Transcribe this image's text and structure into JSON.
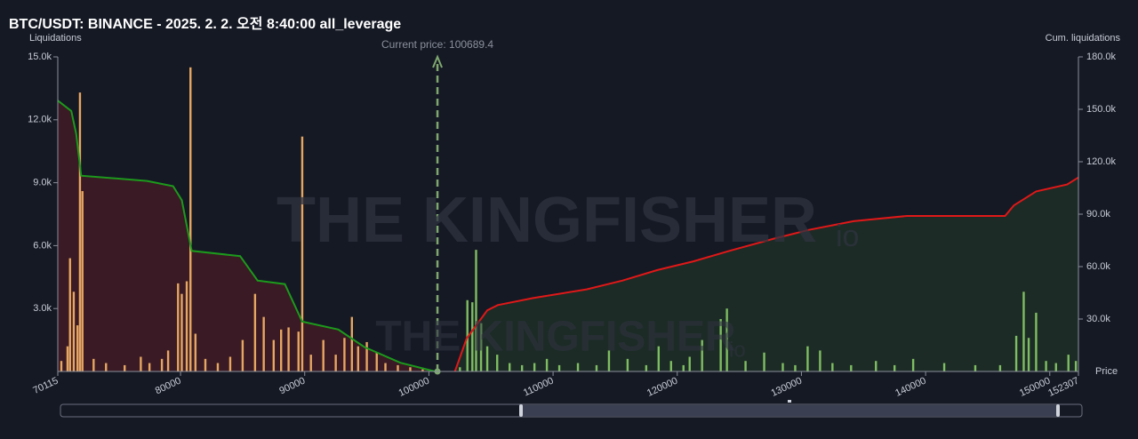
{
  "chart_data": {
    "type": "bar",
    "title": "BTC/USDT: BINANCE - 2025. 2. 2. 오전 8:40:00 all_leverage",
    "y_label": "Liquidations",
    "y2_label": "Cum. liquidations",
    "x_label": "Price",
    "watermark": "THE KINGFISHER",
    "watermark_suffix": "io",
    "annotations": [
      {
        "text": "Current price: 100689.4",
        "x": 100689.4,
        "color": "#7fa870"
      }
    ],
    "xlim": [
      70115,
      152307
    ],
    "xticks": [
      70115,
      80000,
      90000,
      100000,
      110000,
      120000,
      130000,
      140000,
      150000,
      152307
    ],
    "ylim": [
      0,
      15000
    ],
    "yticks": [
      {
        "value": 3000,
        "label": "3.0k"
      },
      {
        "value": 6000,
        "label": "6.0k"
      },
      {
        "value": 9000,
        "label": "9.0k"
      },
      {
        "value": 12000,
        "label": "12.0k"
      },
      {
        "value": 15000,
        "label": "15.0k"
      }
    ],
    "y2lim": [
      0,
      180000
    ],
    "y2ticks": [
      {
        "value": 30000,
        "label": "30.0k"
      },
      {
        "value": 60000,
        "label": "60.0k"
      },
      {
        "value": 90000,
        "label": "90.0k"
      },
      {
        "value": 120000,
        "label": "120.0k"
      },
      {
        "value": 150000,
        "label": "150.0k"
      },
      {
        "value": 180000,
        "label": "180.0k"
      }
    ],
    "series": [
      {
        "type": "bar",
        "color": "#e6a663",
        "x": [
          70400,
          70900,
          71100,
          71400,
          71700,
          71900,
          72100,
          73000,
          74000,
          75500,
          76800,
          77500,
          78500,
          79000,
          79800,
          80100,
          80500,
          80800,
          81200,
          82000,
          83000,
          84000,
          85000,
          86000,
          86700,
          87500,
          88100,
          88700,
          89500,
          89800,
          90500,
          91500,
          92500,
          93200,
          93800,
          94300,
          95000,
          95800,
          96500,
          97500,
          98500,
          99500
        ],
        "values": [
          500,
          1200,
          5400,
          3800,
          2200,
          13300,
          8600,
          600,
          400,
          300,
          700,
          400,
          600,
          1000,
          4200,
          3700,
          4300,
          14500,
          1800,
          600,
          400,
          700,
          1500,
          3700,
          2600,
          1500,
          2000,
          2100,
          1900,
          11200,
          800,
          1500,
          800,
          1600,
          2600,
          1200,
          1400,
          900,
          400,
          300,
          200,
          100
        ]
      },
      {
        "type": "bar",
        "color": "#7fbd62",
        "x": [
          102500,
          103100,
          103500,
          103800,
          104200,
          104700,
          105500,
          106500,
          107500,
          108500,
          109500,
          110500,
          112000,
          113500,
          114500,
          116000,
          117500,
          118500,
          119500,
          120500,
          121000,
          122000,
          123500,
          124000,
          125500,
          127000,
          128500,
          129500,
          130500,
          131500,
          132500,
          134000,
          136000,
          137500,
          139000,
          141500,
          144000,
          146000,
          147300,
          147900,
          148300,
          148900,
          149700,
          150500,
          151500,
          152100
        ],
        "values": [
          200,
          3400,
          3300,
          5800,
          2300,
          1200,
          800,
          400,
          300,
          400,
          600,
          300,
          400,
          300,
          1000,
          600,
          300,
          1200,
          500,
          300,
          700,
          1500,
          2500,
          3000,
          500,
          900,
          400,
          300,
          1200,
          1000,
          400,
          300,
          500,
          300,
          600,
          400,
          300,
          300,
          1700,
          3800,
          1600,
          2800,
          500,
          400,
          800,
          500
        ]
      },
      {
        "type": "line",
        "axis": "y2",
        "color": "#1c9a1c",
        "fill": "#3a1a24",
        "x": [
          70115,
          71200,
          71600,
          72000,
          77300,
          79400,
          80100,
          80900,
          84800,
          86200,
          88400,
          89800,
          92700,
          94800,
          97700,
          100500
        ],
        "values": [
          155000,
          149000,
          136000,
          112000,
          109000,
          106000,
          98000,
          69000,
          66000,
          52000,
          50000,
          28500,
          24000,
          14000,
          5000,
          0
        ]
      },
      {
        "type": "line",
        "axis": "y2",
        "color": "#e01818",
        "fill": "#1c2b26",
        "x": [
          102100,
          103050,
          104700,
          105550,
          108400,
          112700,
          115600,
          118400,
          121300,
          124200,
          127800,
          130600,
          134200,
          138500,
          146400,
          147100,
          148900,
          151400,
          152307
        ],
        "values": [
          0,
          19000,
          35000,
          38000,
          42000,
          47000,
          52000,
          58000,
          63000,
          69000,
          76000,
          81000,
          86000,
          89000,
          89000,
          95000,
          103000,
          107000,
          111000
        ]
      }
    ]
  }
}
